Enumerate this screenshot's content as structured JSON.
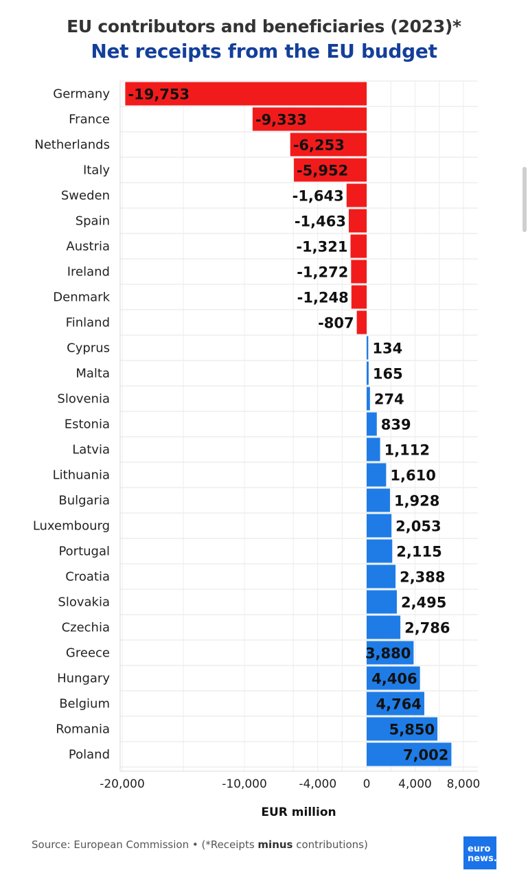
{
  "chart_data": {
    "type": "bar",
    "orientation": "horizontal",
    "title": "EU contributors and beneficiaries (2023)*",
    "subtitle": "Net receipts from the EU budget",
    "xlabel": "EUR million",
    "ylabel": "",
    "xlim": [
      -20000,
      9000
    ],
    "xticks": [
      -20000,
      -10000,
      -4000,
      0,
      4000,
      8000
    ],
    "xtick_labels": [
      "-20,000",
      "-10,000",
      "-4,000",
      "0",
      "4,000",
      "8,000"
    ],
    "grid": true,
    "legend": "none",
    "categories": [
      "Germany",
      "France",
      "Netherlands",
      "Italy",
      "Sweden",
      "Spain",
      "Austria",
      "Ireland",
      "Denmark",
      "Finland",
      "Cyprus",
      "Malta",
      "Slovenia",
      "Estonia",
      "Latvia",
      "Lithuania",
      "Bulgaria",
      "Luxembourg",
      "Portugal",
      "Croatia",
      "Slovakia",
      "Czechia",
      "Greece",
      "Hungary",
      "Belgium",
      "Romania",
      "Poland"
    ],
    "values": [
      -19753,
      -9333,
      -6253,
      -5952,
      -1643,
      -1463,
      -1321,
      -1272,
      -1248,
      -807,
      134,
      165,
      274,
      839,
      1112,
      1610,
      1928,
      2053,
      2115,
      2388,
      2495,
      2786,
      3880,
      4406,
      4764,
      5850,
      7002
    ],
    "value_labels": [
      "-19,753",
      "-9,333",
      "-6,253",
      "-5,952",
      "-1,643",
      "-1,463",
      "-1,321",
      "-1,272",
      "-1,248",
      "-807",
      "134",
      "165",
      "274",
      "839",
      "1,112",
      "1,610",
      "1,928",
      "2,053",
      "2,115",
      "2,388",
      "2,495",
      "2,786",
      "3,880",
      "4,406",
      "4,764",
      "5,850",
      "7,002"
    ],
    "colors": {
      "negative": "#f21b1b",
      "positive": "#1f7ce6"
    }
  },
  "source": {
    "prefix": "Source: European Commission • (*Receipts ",
    "bold": "minus",
    "suffix": " contributions)"
  },
  "logo": {
    "line1": "euro",
    "line2": "news."
  }
}
